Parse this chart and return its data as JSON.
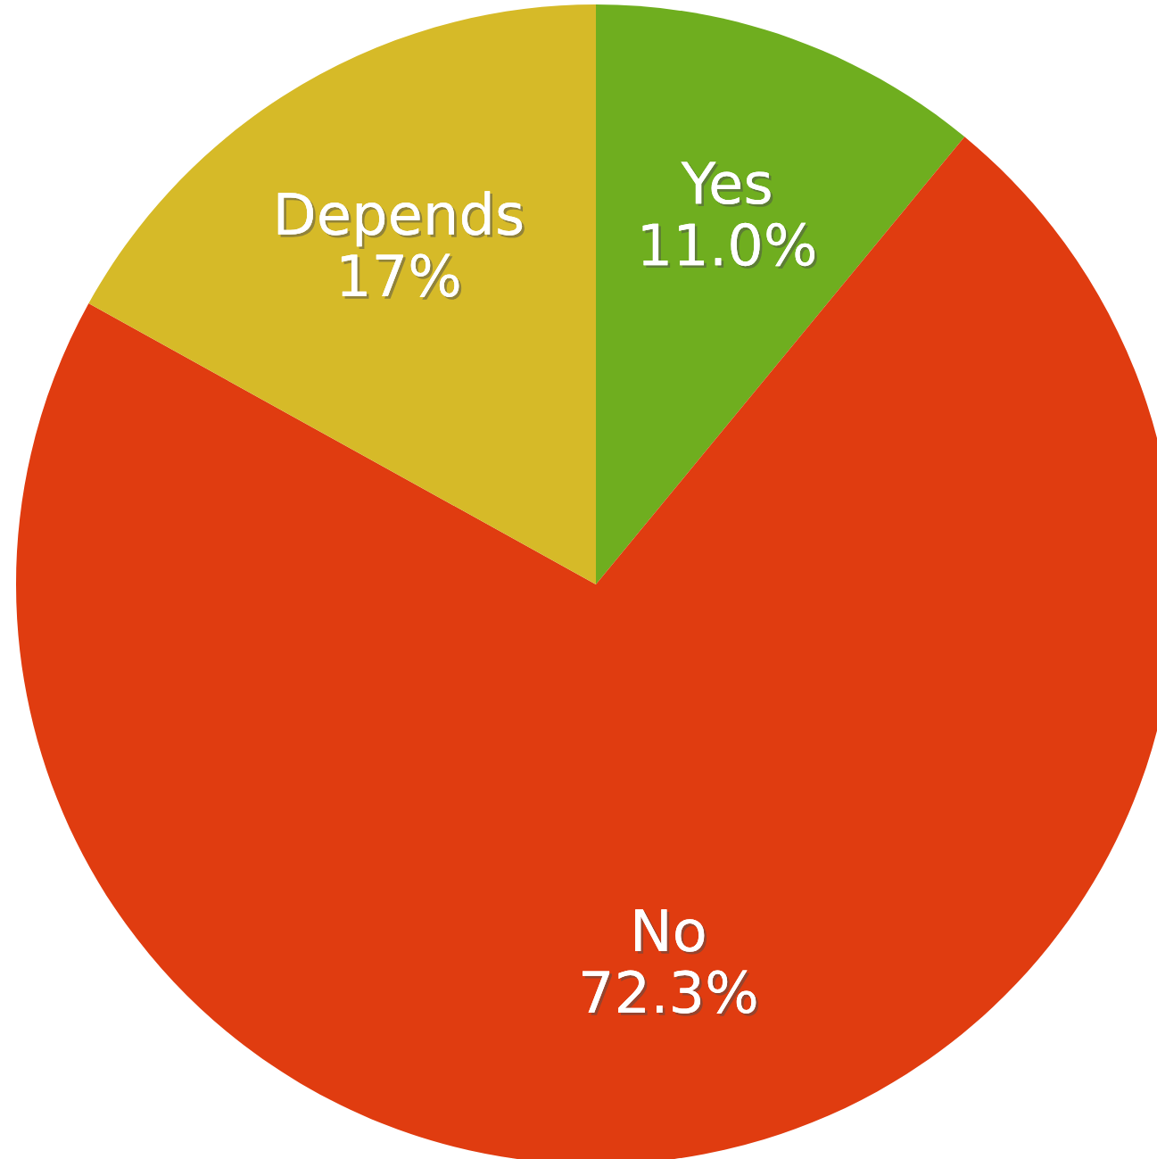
{
  "chart_data": {
    "type": "pie",
    "categories": [
      "Yes",
      "No",
      "Depends"
    ],
    "values": [
      11.0,
      72.3,
      17
    ],
    "value_labels": [
      "11.0%",
      "72.3%",
      "17%"
    ],
    "colors": [
      "#6fae1f",
      "#e03c10",
      "#d6ba28"
    ]
  }
}
